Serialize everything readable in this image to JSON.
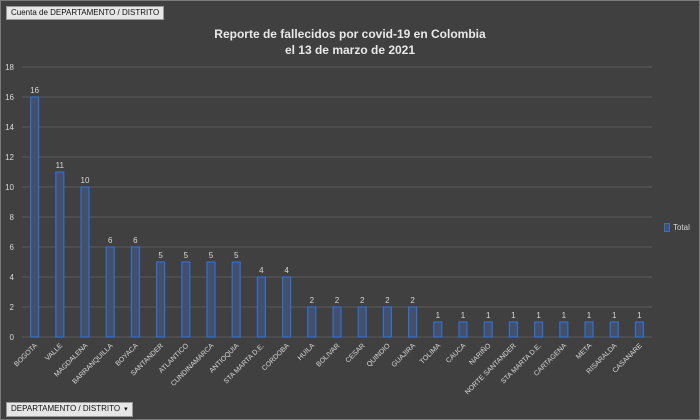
{
  "ui": {
    "top_field": "Cuenta de DEPARTAMENTO / DISTRITO",
    "bottom_field": "DEPARTAMENTO / DISTRITO",
    "bottom_field_arrow": "▾"
  },
  "chart_data": {
    "type": "bar",
    "title": "Reporte de fallecidos por covid-19 en Colombia",
    "subtitle": "el 13 de marzo de 2021",
    "categories": [
      "BOGOTA",
      "VALLE",
      "MAGDALENA",
      "BARRANQUILLA",
      "BOYACA",
      "SANTANDER",
      "ATLANTICO",
      "CUNDINAMARCA",
      "ANTIOQUIA",
      "STA MARTA D.E.",
      "CORDOBA",
      "HUILA",
      "BOLIVAR",
      "CESAR",
      "QUINDIO",
      "GUAJIRA",
      "TOLIMA",
      "CAUCA",
      "NARIÑO",
      "NORTE SANTANDER",
      "STA MARTA D.E.",
      "CARTAGENA",
      "META",
      "RISARALDA",
      "CASANARE"
    ],
    "series": [
      {
        "name": "Total",
        "values": [
          16,
          11,
          10,
          6,
          6,
          5,
          5,
          5,
          5,
          4,
          4,
          2,
          2,
          2,
          2,
          2,
          1,
          1,
          1,
          1,
          1,
          1,
          1,
          1,
          1
        ]
      }
    ],
    "ylim": [
      0,
      18
    ],
    "yticks": [
      0,
      2,
      4,
      6,
      8,
      10,
      12,
      14,
      16,
      18
    ],
    "grid": true,
    "legend_position": "right",
    "colors": {
      "bar_fill": "#44506a",
      "bar_stroke": "#2f6fd6",
      "text": "#d8d8d8",
      "grid": "#5a5a5a"
    }
  }
}
